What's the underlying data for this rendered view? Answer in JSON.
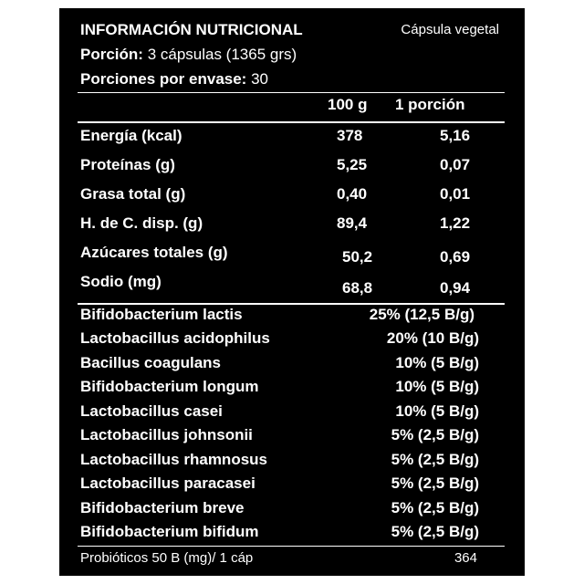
{
  "header": {
    "title": "INFORMACIÓN NUTRICIONAL",
    "capsule_type": "Cápsula vegetal",
    "serving_label": "Porción:",
    "serving_value": "3 cápsulas (1365 grs)",
    "servings_label": "Porciones por envase:",
    "servings_value": "30"
  },
  "columns": {
    "per_100g": "100 g",
    "per_serving": "1 porción"
  },
  "nutrients": [
    {
      "name": "Energía (kcal)",
      "per_100g": "378",
      "per_serving": "5,16"
    },
    {
      "name": "Proteínas (g)",
      "per_100g": "5,25",
      "per_serving": "0,07"
    },
    {
      "name": "Grasa total (g)",
      "per_100g": "0,40",
      "per_serving": "0,01"
    },
    {
      "name": "H. de C. disp. (g)",
      "per_100g": "89,4",
      "per_serving": "1,22"
    },
    {
      "name": "Azúcares totales (g)",
      "per_100g": "50,2",
      "per_serving": "0,69"
    },
    {
      "name": "Sodio (mg)",
      "per_100g": "68,8",
      "per_serving": "0,94"
    }
  ],
  "strains": [
    {
      "name": "Bifidobacterium lactis",
      "value": "25% (12,5 B/g)"
    },
    {
      "name": "Lactobacillus acidophilus",
      "value": "20% (10 B/g)"
    },
    {
      "name": "Bacillus coagulans",
      "value": "10% (5 B/g)"
    },
    {
      "name": "Bifidobacterium longum",
      "value": "10% (5 B/g)"
    },
    {
      "name": "Lactobacillus casei",
      "value": "10% (5 B/g)"
    },
    {
      "name": "Lactobacillus johnsonii",
      "value": "5% (2,5 B/g)"
    },
    {
      "name": "Lactobacillus rhamnosus",
      "value": "5% (2,5 B/g)"
    },
    {
      "name": "Lactobacillus paracasei",
      "value": "5% (2,5 B/g)"
    },
    {
      "name": "Bifidobacterium breve",
      "value": "5% (2,5 B/g)"
    },
    {
      "name": "Bifidobacterium bifidum",
      "value": "5% (2,5 B/g)"
    }
  ],
  "footer": {
    "label": "Probióticos 50 B (mg)/ 1 cáp",
    "value": "364"
  }
}
